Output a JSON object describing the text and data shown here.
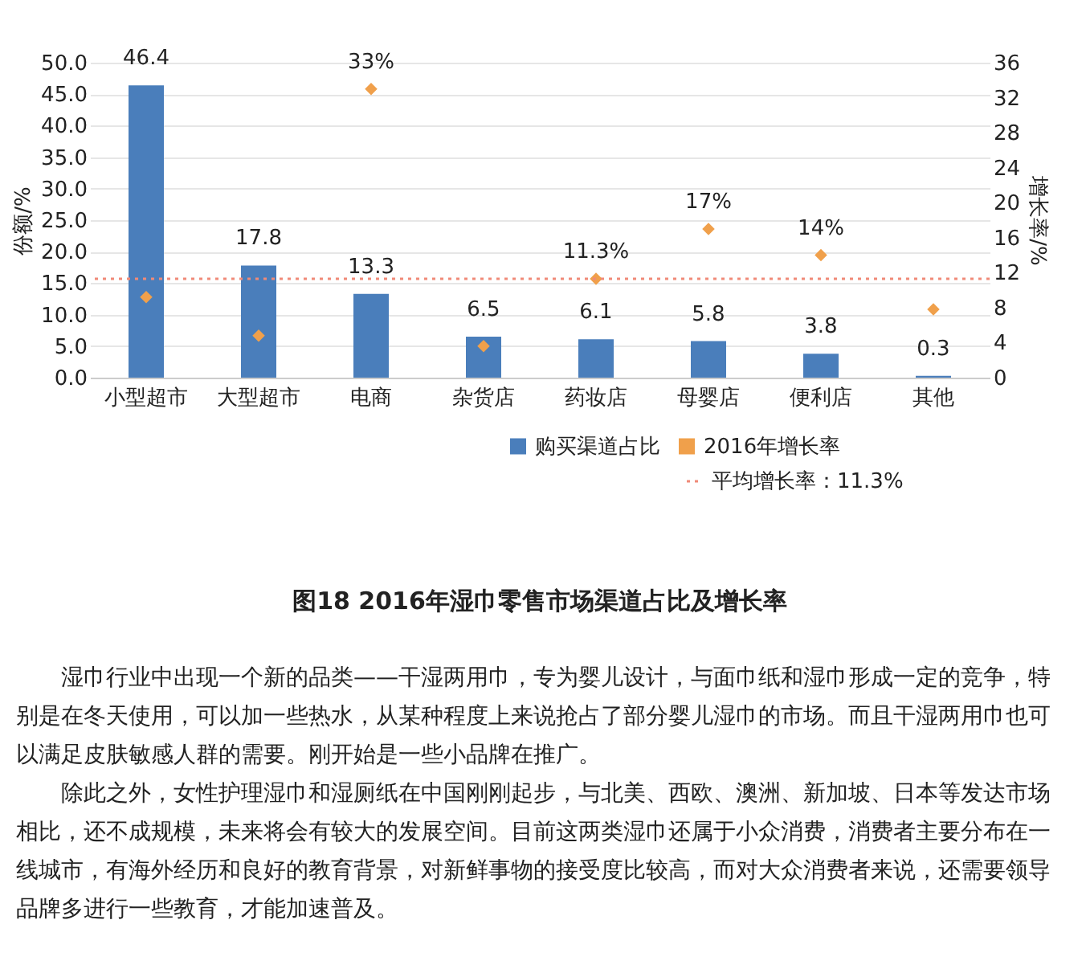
{
  "chart_data": {
    "type": "bar",
    "title": "图18  2016年湿巾零售市场渠道占比及增长率",
    "ylabel": "份额/%",
    "y2label": "增长率/%",
    "categories": [
      "小型超市",
      "大型超市",
      "电商",
      "杂货店",
      "药妆店",
      "母婴店",
      "便利店",
      "其他"
    ],
    "series": [
      {
        "name": "购买渠道占比",
        "color": "#4a7ebb",
        "values": [
          46.4,
          17.8,
          13.3,
          6.5,
          6.1,
          5.8,
          3.8,
          0.3
        ]
      },
      {
        "name": "2016年增长率",
        "type": "scatter",
        "axis": "y2",
        "marker": "diamond",
        "color": "#f0a04b",
        "values": [
          9.2,
          4.8,
          33,
          3.6,
          11.3,
          17,
          14,
          7.8
        ],
        "value_labels": [
          null,
          null,
          "33%",
          null,
          "11.3%",
          "17%",
          "14%",
          null
        ]
      }
    ],
    "data_labels": true,
    "ylim": [
      0,
      50
    ],
    "yticks": [
      {
        "value": 0,
        "label": "0.0"
      },
      {
        "value": 5,
        "label": "5.0"
      },
      {
        "value": 10,
        "label": "10.0"
      },
      {
        "value": 15,
        "label": "15.0"
      },
      {
        "value": 20,
        "label": "20.0"
      },
      {
        "value": 25,
        "label": "25.0"
      },
      {
        "value": 30,
        "label": "30.0"
      },
      {
        "value": 35,
        "label": "35.0"
      },
      {
        "value": 40,
        "label": "40.0"
      },
      {
        "value": 45,
        "label": "45.0"
      },
      {
        "value": 50,
        "label": "50.0"
      }
    ],
    "y2lim": [
      0,
      36
    ],
    "y2ticks": [
      0,
      4,
      8,
      12,
      16,
      20,
      24,
      28,
      32,
      36
    ],
    "ref_lines": [
      {
        "axis": "y2",
        "value": 11.3,
        "label": "平均增长率：11.3%",
        "color": "#f08a78",
        "line_style": "dotted"
      }
    ],
    "grid": "y",
    "legend": "bottom right",
    "annotations": [
      "湿巾行业中出现一个新的品类——干湿两用巾，专为婴儿设计，与面巾纸和湿巾形成一定的竞争，特别是在冬天使用，可以加一些热水，从某种程度上来说抢占了部分婴儿湿巾的市场。而且干湿两用巾也可以满足皮肤敏感人群的需要。刚开始是一些小品牌在推广。",
      "除此之外，女性护理湿巾和湿厕纸在中国刚刚起步，与北美、西欧、澳洲、新加坡、日本等发达市场相比，还不成规模，未来将会有较大的发展空间。目前这两类湿巾还属于小众消费，消费者主要分布在一线城市，有海外经历和良好的教育背景，对新鲜事物的接受度比较高，而对大众消费者来说，还需要领导品牌多进行一些教育，才能加速普及。"
    ]
  }
}
